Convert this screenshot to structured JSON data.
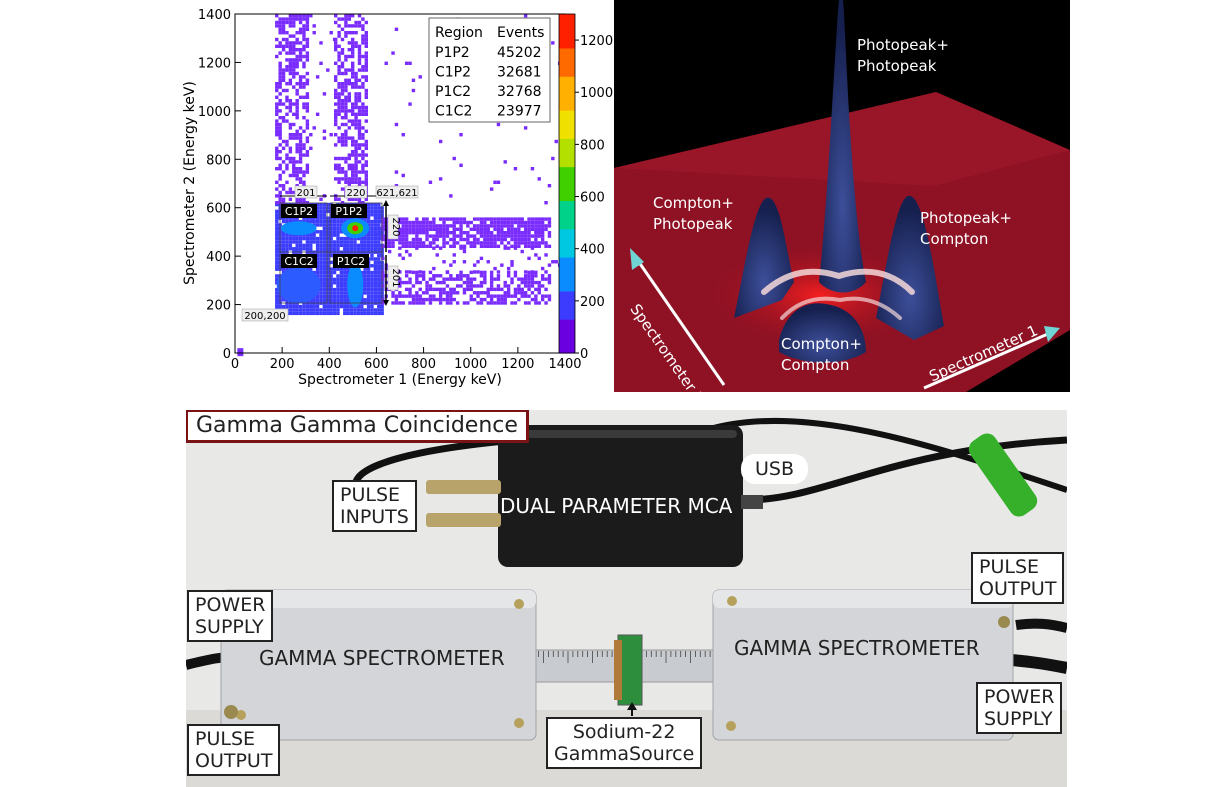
{
  "heatmap": {
    "chart_data": {
      "type": "heatmap",
      "xlabel": "Spectrometer 1 (Energy keV)",
      "ylabel": "Spectrometer 2 (Energy keV)",
      "xlim": [
        0,
        1400
      ],
      "ylim": [
        0,
        1400
      ],
      "x_ticks": [
        "0",
        "200",
        "400",
        "600",
        "800",
        "1000",
        "1200",
        "1400"
      ],
      "y_ticks": [
        "0",
        "200",
        "400",
        "600",
        "800",
        "1000",
        "1200",
        "1400"
      ],
      "colorbar_ticks": [
        "0",
        "200",
        "400",
        "600",
        "800",
        "1000",
        "1200"
      ],
      "colorbar_range": [
        0,
        1300
      ],
      "table_headers": [
        "Region",
        "Events"
      ],
      "table_rows": [
        {
          "region": "P1P2",
          "events": "45202"
        },
        {
          "region": "C1P2",
          "events": "32681"
        },
        {
          "region": "P1C2",
          "events": "32768"
        },
        {
          "region": "C1C2",
          "events": "23977"
        }
      ],
      "region_labels": [
        "C1P2",
        "P1P2",
        "C1C2",
        "P1C2"
      ],
      "annotations": {
        "width_c": "201",
        "width_p": "220",
        "height_p": "220",
        "height_c": "201",
        "corner_top": "621,621",
        "corner_bottom": "200,200"
      }
    }
  },
  "surface": {
    "labels": {
      "peak_peak_1": "Photopeak+",
      "peak_peak_2": "Photopeak",
      "compton_peak_1": "Compton+",
      "compton_peak_2": "Photopeak",
      "peak_compton_1": "Photopeak+",
      "peak_compton_2": "Compton",
      "compton_compton_1": "Compton+",
      "compton_compton_2": "Compton",
      "axis_1": "Spectrometer 1",
      "axis_2": "Spectrometer 2"
    },
    "colors": {
      "floor": "#8c1020",
      "peak": "#1f2d6b",
      "ridge": "#f4e4e4"
    }
  },
  "photo": {
    "title": "Gamma Gamma Coincidence",
    "usb": "USB",
    "pulse_inputs_1": "PULSE",
    "pulse_inputs_2": "INPUTS",
    "mca": "DUAL PARAMETER MCA",
    "power_left_1": "POWER",
    "power_left_2": "SUPPLY",
    "pulse_out_left_1": "PULSE",
    "pulse_out_left_2": "OUTPUT",
    "spectrometer_left": "GAMMA SPECTROMETER",
    "spectrometer_right": "GAMMA SPECTROMETER",
    "pulse_out_right_1": "PULSE",
    "pulse_out_right_2": "OUTPUT",
    "power_right_1": "POWER",
    "power_right_2": "SUPPLY",
    "source_1": "Sodium-22",
    "source_2": "GammaSource",
    "colors": {
      "title_border": "#7a1414",
      "box_metal": "#cfd1d4",
      "mca_box": "#1b1b1b"
    }
  }
}
